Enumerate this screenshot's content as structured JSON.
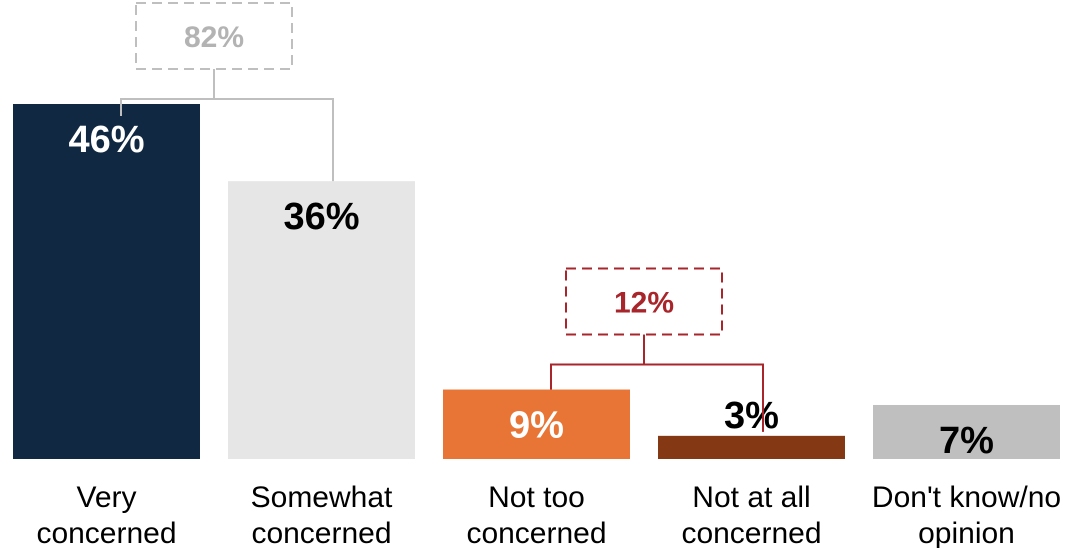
{
  "chart_data": {
    "type": "bar",
    "categories": [
      [
        "Very",
        "concerned"
      ],
      [
        "Somewhat",
        "concerned"
      ],
      [
        "Not too",
        "concerned"
      ],
      [
        "Not at all",
        "concerned"
      ],
      [
        "Don't know/no",
        "opinion"
      ]
    ],
    "values": [
      46,
      36,
      9,
      3,
      7
    ],
    "data_labels": [
      "46%",
      "36%",
      "9%",
      "3%",
      "7%"
    ],
    "colors": [
      "#102842",
      "#e6e6e6",
      "#e87435",
      "#843813",
      "#bfbfbf"
    ],
    "label_colors": [
      "#ffffff",
      "#000000",
      "#ffffff",
      "#000000",
      "#000000"
    ],
    "groups": [
      {
        "label": "82%",
        "value": 82,
        "members": [
          0,
          1
        ],
        "color": "#bfbfbf",
        "text_color": "#b3b3b3"
      },
      {
        "label": "12%",
        "value": 12,
        "members": [
          2,
          3
        ],
        "color": "#a8262b",
        "text_color": "#a8262b"
      }
    ],
    "ylim": [
      0,
      46
    ],
    "grid": false,
    "legend": "none"
  }
}
